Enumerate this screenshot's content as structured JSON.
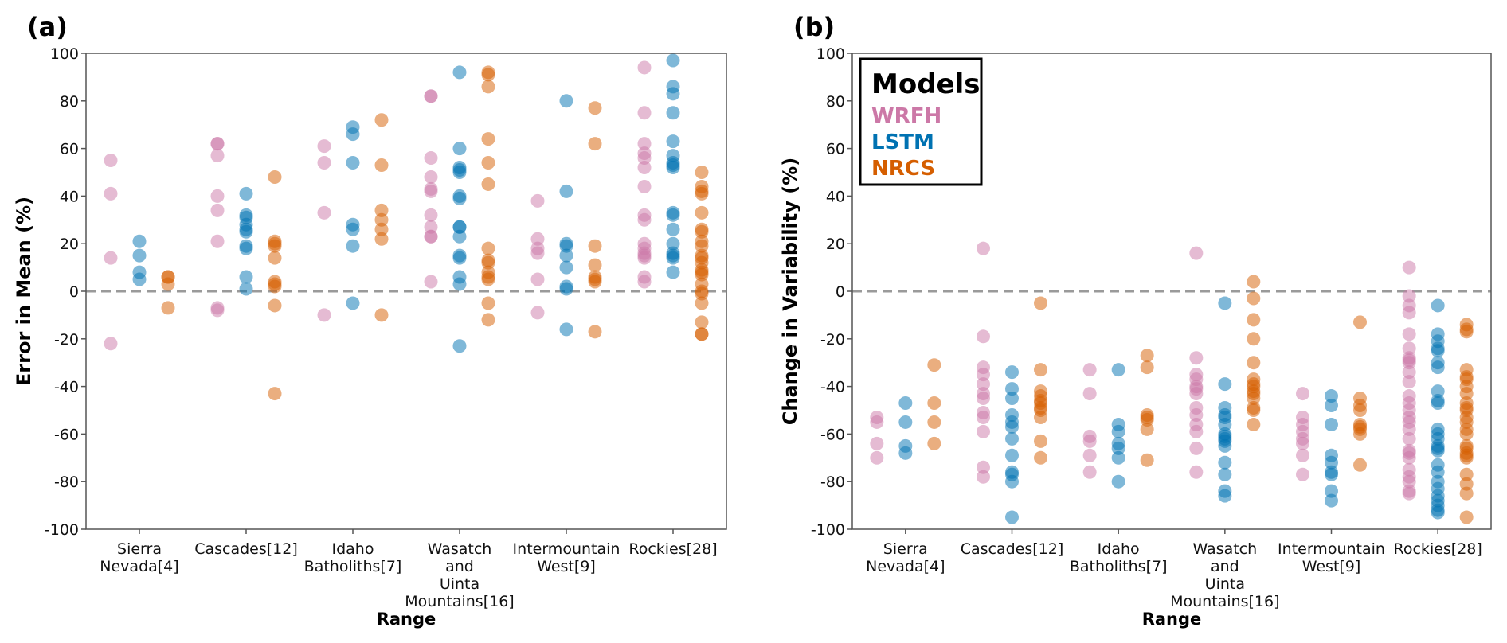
{
  "chart_data": [
    {
      "type": "scatter",
      "panel_label": "(a)",
      "title": "",
      "xlabel": "Range",
      "ylabel": "Error in Mean (%)",
      "ylim": [
        -100,
        100
      ],
      "yticks": [
        -100,
        -80,
        -60,
        -40,
        -20,
        0,
        20,
        40,
        60,
        80,
        100
      ],
      "reference_line": 0,
      "categories": [
        [
          "Sierra",
          "Nevada[4]"
        ],
        [
          "Cascades[12]"
        ],
        [
          "Idaho",
          "Batholiths[7]"
        ],
        [
          "Wasatch",
          "and",
          "Uinta",
          "Mountains[16]"
        ],
        [
          "Intermountain",
          "West[9]"
        ],
        [
          "Rockies[28]"
        ]
      ],
      "series": [
        {
          "name": "WRFH",
          "color": "#cc78a7",
          "values": [
            [
              55,
              41,
              14,
              -22
            ],
            [
              62,
              62,
              57,
              40,
              34,
              21,
              -7,
              -8
            ],
            [
              61,
              54,
              33,
              -10
            ],
            [
              82,
              82,
              56,
              48,
              43,
              42,
              32,
              27,
              23,
              23,
              4
            ],
            [
              38,
              22,
              18,
              16,
              5,
              -9
            ],
            [
              94,
              75,
              62,
              58,
              56,
              52,
              44,
              32,
              30,
              20,
              18,
              16,
              15,
              14,
              6,
              4
            ]
          ]
        },
        {
          "name": "LSTM",
          "color": "#0072b2",
          "values": [
            [
              21,
              15,
              8,
              5
            ],
            [
              41,
              32,
              31,
              28,
              26,
              25,
              19,
              18,
              6,
              1
            ],
            [
              69,
              66,
              54,
              28,
              26,
              19,
              -5
            ],
            [
              92,
              60,
              52,
              51,
              50,
              40,
              39,
              27,
              27,
              23,
              15,
              14,
              6,
              3,
              -23
            ],
            [
              80,
              42,
              20,
              19,
              15,
              10,
              2,
              1,
              -16
            ],
            [
              97,
              86,
              83,
              75,
              63,
              57,
              54,
              53,
              52,
              33,
              32,
              26,
              20,
              16,
              15,
              14,
              8
            ]
          ]
        },
        {
          "name": "NRCS",
          "color": "#d55e00",
          "values": [
            [
              6,
              6,
              3,
              -7
            ],
            [
              48,
              21,
              20,
              19,
              14,
              4,
              3,
              2,
              -6,
              -43
            ],
            [
              72,
              53,
              34,
              30,
              26,
              22,
              -10
            ],
            [
              92,
              91,
              86,
              64,
              54,
              45,
              18,
              13,
              12,
              8,
              6,
              5,
              -5,
              -12
            ],
            [
              77,
              62,
              19,
              11,
              6,
              5,
              4,
              -17
            ],
            [
              50,
              44,
              42,
              41,
              33,
              26,
              25,
              21,
              19,
              15,
              14,
              12,
              9,
              8,
              7,
              3,
              0,
              -1,
              -5,
              -13,
              -18,
              -18
            ]
          ]
        }
      ],
      "legend": "none"
    },
    {
      "type": "scatter",
      "panel_label": "(b)",
      "title": "",
      "xlabel": "Range",
      "ylabel": "Change in Variability (%)",
      "ylim": [
        -100,
        100
      ],
      "yticks": [
        -100,
        -80,
        -60,
        -40,
        -20,
        0,
        20,
        40,
        60,
        80,
        100
      ],
      "reference_line": 0,
      "categories": [
        [
          "Sierra",
          "Nevada[4]"
        ],
        [
          "Cascades[12]"
        ],
        [
          "Idaho",
          "Batholiths[7]"
        ],
        [
          "Wasatch",
          "and",
          "Uinta",
          "Mountains[16]"
        ],
        [
          "Intermountain",
          "West[9]"
        ],
        [
          "Rockies[28]"
        ]
      ],
      "series": [
        {
          "name": "WRFH",
          "color": "#cc78a7",
          "values": [
            [
              -53,
              -55,
              -64,
              -70
            ],
            [
              18,
              -19,
              -32,
              -35,
              -39,
              -43,
              -45,
              -51,
              -53,
              -59,
              -74,
              -78
            ],
            [
              -33,
              -43,
              -61,
              -63,
              -69,
              -76
            ],
            [
              16,
              -28,
              -35,
              -37,
              -40,
              -41,
              -43,
              -49,
              -52,
              -56,
              -59,
              -66,
              -76
            ],
            [
              -43,
              -53,
              -56,
              -59,
              -62,
              -64,
              -69,
              -77
            ],
            [
              10,
              -2,
              -6,
              -9,
              -18,
              -24,
              -28,
              -29,
              -30,
              -34,
              -38,
              -44,
              -47,
              -50,
              -53,
              -55,
              -58,
              -62,
              -67,
              -68,
              -70,
              -75,
              -78,
              -80,
              -84,
              -85
            ]
          ]
        },
        {
          "name": "LSTM",
          "color": "#0072b2",
          "values": [
            [
              -47,
              -55,
              -65,
              -68
            ],
            [
              -34,
              -41,
              -45,
              -52,
              -55,
              -57,
              -62,
              -69,
              -76,
              -77,
              -80,
              -95
            ],
            [
              -33,
              -56,
              -59,
              -64,
              -66,
              -70,
              -80
            ],
            [
              -5,
              -39,
              -49,
              -52,
              -53,
              -56,
              -60,
              -61,
              -62,
              -63,
              -65,
              -72,
              -77,
              -84,
              -86
            ],
            [
              -44,
              -48,
              -56,
              -69,
              -72,
              -76,
              -77,
              -84,
              -88
            ],
            [
              -6,
              -18,
              -21,
              -24,
              -25,
              -30,
              -32,
              -42,
              -46,
              -47,
              -58,
              -60,
              -62,
              -65,
              -66,
              -67,
              -73,
              -76,
              -80,
              -83,
              -86,
              -88,
              -90,
              -92,
              -93
            ]
          ]
        },
        {
          "name": "NRCS",
          "color": "#d55e00",
          "values": [
            [
              -31,
              -47,
              -55,
              -64
            ],
            [
              -5,
              -33,
              -42,
              -44,
              -46,
              -47,
              -49,
              -50,
              -53,
              -63,
              -70
            ],
            [
              -27,
              -32,
              -52,
              -53,
              -54,
              -58,
              -71
            ],
            [
              4,
              -3,
              -12,
              -20,
              -30,
              -37,
              -39,
              -40,
              -42,
              -43,
              -45,
              -49,
              -50,
              -56
            ],
            [
              -13,
              -45,
              -48,
              -50,
              -56,
              -57,
              -58,
              -60,
              -73
            ],
            [
              -14,
              -16,
              -17,
              -33,
              -36,
              -37,
              -40,
              -43,
              -47,
              -49,
              -50,
              -53,
              -55,
              -58,
              -60,
              -65,
              -66,
              -68,
              -69,
              -70,
              -77,
              -81,
              -85,
              -95
            ]
          ]
        }
      ],
      "legend": "top-left",
      "legend_title": "Models"
    }
  ],
  "legend": {
    "title": "Models",
    "items": [
      {
        "label": "WRFH",
        "color": "#cc78a7"
      },
      {
        "label": "LSTM",
        "color": "#0072b2"
      },
      {
        "label": "NRCS",
        "color": "#d55e00"
      }
    ]
  }
}
